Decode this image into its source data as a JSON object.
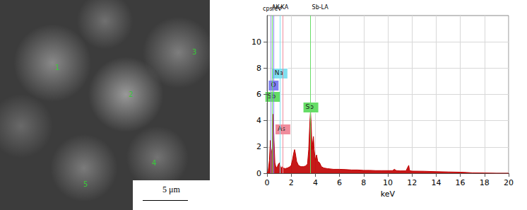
{
  "micrograph": {
    "scale_bar": "5 μm",
    "point_labels": [
      "1",
      "2",
      "3",
      "4",
      "5"
    ]
  },
  "chart_data": {
    "type": "line",
    "x_label": "keV",
    "y_label": "cps/eV",
    "color": "#c00000",
    "xlim": [
      0,
      20
    ],
    "xticks": [
      0,
      2,
      4,
      6,
      8,
      10,
      12,
      14,
      16,
      18,
      20
    ],
    "ylim": [
      0,
      12
    ],
    "yticks": [
      0,
      2,
      4,
      6,
      8,
      10
    ],
    "grid": true,
    "x": [
      0.0,
      0.1,
      0.2,
      0.28,
      0.35,
      0.45,
      0.52,
      0.58,
      0.65,
      0.75,
      0.85,
      0.95,
      1.04,
      1.12,
      1.2,
      1.28,
      1.35,
      1.5,
      1.7,
      1.9,
      2.0,
      2.1,
      2.2,
      2.28,
      2.35,
      2.45,
      2.6,
      2.8,
      3.0,
      3.2,
      3.35,
      3.45,
      3.55,
      3.6,
      3.66,
      3.72,
      3.8,
      3.84,
      3.9,
      4.0,
      4.1,
      4.2,
      4.35,
      4.5,
      4.7,
      5.0,
      5.5,
      6.0,
      6.5,
      7.0,
      7.5,
      8.0,
      8.5,
      9.0,
      9.5,
      10.0,
      10.4,
      10.54,
      10.7,
      11.0,
      11.5,
      11.73,
      11.8,
      12.0,
      13.0,
      14.0,
      15.0,
      16.0,
      16.5,
      17.0,
      18.0,
      19.0,
      20.0
    ],
    "values": [
      0,
      0.2,
      1.0,
      2.5,
      1.5,
      2.0,
      4.5,
      2.5,
      0.8,
      0.4,
      0.5,
      0.7,
      0.8,
      0.5,
      0.4,
      0.5,
      0.4,
      0.35,
      0.4,
      0.5,
      0.6,
      1.0,
      1.5,
      1.8,
      1.5,
      0.9,
      0.6,
      0.5,
      0.5,
      0.55,
      0.7,
      1.8,
      4.0,
      4.7,
      3.6,
      1.8,
      2.5,
      2.8,
      1.8,
      1.0,
      1.4,
      0.9,
      0.8,
      0.5,
      0.4,
      0.35,
      0.3,
      0.3,
      0.28,
      0.25,
      0.25,
      0.22,
      0.22,
      0.2,
      0.2,
      0.2,
      0.2,
      0.3,
      0.2,
      0.18,
      0.18,
      0.6,
      0.2,
      0.16,
      0.15,
      0.12,
      0.1,
      0.08,
      0.06,
      0.03,
      0.02,
      0,
      0
    ],
    "lines": [
      {
        "label": "AK-KA",
        "energy": 0.28,
        "color": "#9090e0"
      },
      {
        "label": "Sb-LA",
        "energy": 3.6,
        "color": "#90e090"
      }
    ],
    "elements": [
      {
        "label": "Na",
        "energy": 1.04,
        "color": "#7fe0f0"
      },
      {
        "label": "O",
        "energy": 0.52,
        "color": "#8080f0"
      },
      {
        "label": "Sb",
        "energy": 0.45,
        "color": "#66dd66"
      },
      {
        "label": "As",
        "energy": 1.28,
        "color": "#f08c9c"
      },
      {
        "label": "Sb",
        "energy": 3.6,
        "color": "#66dd66"
      }
    ]
  }
}
